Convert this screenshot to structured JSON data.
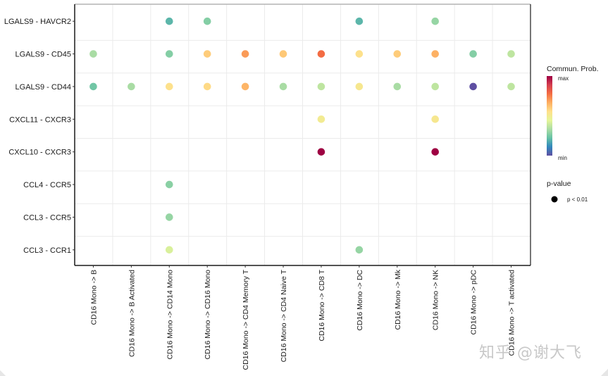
{
  "chart_data": {
    "type": "scatter",
    "subtype": "dot-matrix",
    "title": "",
    "xlabel": "",
    "ylabel": "",
    "grid": true,
    "x_categories": [
      "CD16 Mono -> B",
      "CD16 Mono -> B Activated",
      "CD16 Mono -> CD14 Mono",
      "CD16 Mono -> CD16 Mono",
      "CD16 Mono -> CD4 Memory T",
      "CD16 Mono -> CD4 Naive T",
      "CD16 Mono -> CD8 T",
      "CD16 Mono -> DC",
      "CD16 Mono -> Mk",
      "CD16 Mono -> NK",
      "CD16 Mono -> pDC",
      "CD16 Mono -> T activated"
    ],
    "y_categories": [
      "LGALS9 - HAVCR2",
      "LGALS9 - CD45",
      "LGALS9 - CD44",
      "CXCL11 - CXCR3",
      "CXCL10 - CXCR3",
      "CCL4 - CCR5",
      "CCL3 - CCR5",
      "CCL3 - CCR1"
    ],
    "value_scale": "relative communication probability, 0 = min, 1 = max",
    "points": [
      {
        "y": "LGALS9 - HAVCR2",
        "x": "CD16 Mono -> CD14 Mono",
        "prob": 0.2
      },
      {
        "y": "LGALS9 - HAVCR2",
        "x": "CD16 Mono -> CD16 Mono",
        "prob": 0.27
      },
      {
        "y": "LGALS9 - HAVCR2",
        "x": "CD16 Mono -> DC",
        "prob": 0.2
      },
      {
        "y": "LGALS9 - HAVCR2",
        "x": "CD16 Mono -> NK",
        "prob": 0.3
      },
      {
        "y": "LGALS9 - CD45",
        "x": "CD16 Mono -> B",
        "prob": 0.33
      },
      {
        "y": "LGALS9 - CD45",
        "x": "CD16 Mono -> CD14 Mono",
        "prob": 0.27
      },
      {
        "y": "LGALS9 - CD45",
        "x": "CD16 Mono -> CD16 Mono",
        "prob": 0.6
      },
      {
        "y": "LGALS9 - CD45",
        "x": "CD16 Mono -> CD4 Memory T",
        "prob": 0.7
      },
      {
        "y": "LGALS9 - CD45",
        "x": "CD16 Mono -> CD4 Naive T",
        "prob": 0.61
      },
      {
        "y": "LGALS9 - CD45",
        "x": "CD16 Mono -> CD8 T",
        "prob": 0.78
      },
      {
        "y": "LGALS9 - CD45",
        "x": "CD16 Mono -> DC",
        "prob": 0.55
      },
      {
        "y": "LGALS9 - CD45",
        "x": "CD16 Mono -> Mk",
        "prob": 0.6
      },
      {
        "y": "LGALS9 - CD45",
        "x": "CD16 Mono -> NK",
        "prob": 0.66
      },
      {
        "y": "LGALS9 - CD45",
        "x": "CD16 Mono -> pDC",
        "prob": 0.27
      },
      {
        "y": "LGALS9 - CD45",
        "x": "CD16 Mono -> T activated",
        "prob": 0.37
      },
      {
        "y": "LGALS9 - CD44",
        "x": "CD16 Mono -> B",
        "prob": 0.24
      },
      {
        "y": "LGALS9 - CD44",
        "x": "CD16 Mono -> B Activated",
        "prob": 0.33
      },
      {
        "y": "LGALS9 - CD44",
        "x": "CD16 Mono -> CD14 Mono",
        "prob": 0.55
      },
      {
        "y": "LGALS9 - CD44",
        "x": "CD16 Mono -> CD16 Mono",
        "prob": 0.57
      },
      {
        "y": "LGALS9 - CD44",
        "x": "CD16 Mono -> CD4 Memory T",
        "prob": 0.65
      },
      {
        "y": "LGALS9 - CD44",
        "x": "CD16 Mono -> CD4 Naive T",
        "prob": 0.33
      },
      {
        "y": "LGALS9 - CD44",
        "x": "CD16 Mono -> CD8 T",
        "prob": 0.37
      },
      {
        "y": "LGALS9 - CD44",
        "x": "CD16 Mono -> DC",
        "prob": 0.52
      },
      {
        "y": "LGALS9 - CD44",
        "x": "CD16 Mono -> Mk",
        "prob": 0.33
      },
      {
        "y": "LGALS9 - CD44",
        "x": "CD16 Mono -> NK",
        "prob": 0.37
      },
      {
        "y": "LGALS9 - CD44",
        "x": "CD16 Mono -> pDC",
        "prob": 0.0
      },
      {
        "y": "LGALS9 - CD44",
        "x": "CD16 Mono -> T activated",
        "prob": 0.37
      },
      {
        "y": "CXCL11 - CXCR3",
        "x": "CD16 Mono -> CD8 T",
        "prob": 0.5
      },
      {
        "y": "CXCL11 - CXCR3",
        "x": "CD16 Mono -> NK",
        "prob": 0.52
      },
      {
        "y": "CXCL10 - CXCR3",
        "x": "CD16 Mono -> CD8 T",
        "prob": 1.0
      },
      {
        "y": "CXCL10 - CXCR3",
        "x": "CD16 Mono -> NK",
        "prob": 1.0
      },
      {
        "y": "CCL4 - CCR5",
        "x": "CD16 Mono -> CD14 Mono",
        "prob": 0.28
      },
      {
        "y": "CCL3 - CCR5",
        "x": "CD16 Mono -> CD14 Mono",
        "prob": 0.3
      },
      {
        "y": "CCL3 - CCR1",
        "x": "CD16 Mono -> CD14 Mono",
        "prob": 0.42
      },
      {
        "y": "CCL3 - CCR1",
        "x": "CD16 Mono -> DC",
        "prob": 0.3
      }
    ],
    "colorscale": {
      "name": "Spectral",
      "stops": [
        "#5E4FA2",
        "#3288BD",
        "#66C2A5",
        "#ABDDA4",
        "#E6F598",
        "#FEE08B",
        "#FDAE61",
        "#F46D43",
        "#D53E4F",
        "#9E0142"
      ]
    },
    "legend": {
      "placement": "right",
      "color_title": "Commun. Prob.",
      "color_max_label": "max",
      "color_min_label": "min",
      "size_title": "p-value",
      "size_entry_label": "p < 0.01"
    }
  },
  "watermark": "知乎 @谢大飞"
}
